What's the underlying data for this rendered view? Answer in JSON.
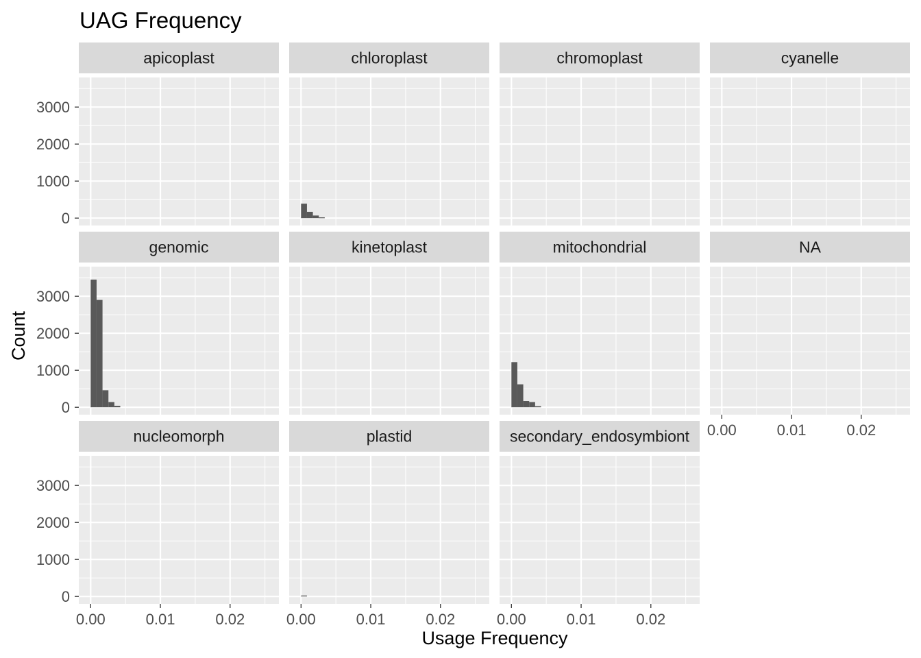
{
  "chart_data": {
    "type": "bar",
    "title": "UAG Frequency",
    "xlabel": "Usage Frequency",
    "ylabel": "Count",
    "xlim": [
      -0.0017,
      0.027
    ],
    "ylim": [
      -200,
      3800
    ],
    "x_ticks": [
      0.0,
      0.01,
      0.02
    ],
    "x_tick_labels": [
      "0.00",
      "0.01",
      "0.02"
    ],
    "y_ticks": [
      0,
      1000,
      2000,
      3000
    ],
    "y_tick_labels": [
      "0",
      "1000",
      "2000",
      "3000"
    ],
    "bin_width": 0.00085,
    "grid": true,
    "layout": {
      "columns": 4,
      "rows": 3
    },
    "colors": {
      "bar": "#595959",
      "panel": "#ebebeb",
      "strip": "#d9d9d9",
      "grid": "#ffffff"
    },
    "panels": [
      {
        "name": "apicoplast",
        "bins": []
      },
      {
        "name": "chloroplast",
        "bins": [
          {
            "x": 0.0,
            "count": 390
          },
          {
            "x": 0.00085,
            "count": 170
          },
          {
            "x": 0.0017,
            "count": 70
          },
          {
            "x": 0.00255,
            "count": 20
          }
        ]
      },
      {
        "name": "chromoplast",
        "bins": []
      },
      {
        "name": "cyanelle",
        "bins": []
      },
      {
        "name": "genomic",
        "bins": [
          {
            "x": 0.0,
            "count": 3450
          },
          {
            "x": 0.00085,
            "count": 2900
          },
          {
            "x": 0.0017,
            "count": 460
          },
          {
            "x": 0.00255,
            "count": 140
          },
          {
            "x": 0.0034,
            "count": 40
          }
        ]
      },
      {
        "name": "kinetoplast",
        "bins": []
      },
      {
        "name": "mitochondrial",
        "bins": [
          {
            "x": 0.0,
            "count": 1220
          },
          {
            "x": 0.00085,
            "count": 620
          },
          {
            "x": 0.0017,
            "count": 170
          },
          {
            "x": 0.00255,
            "count": 140
          },
          {
            "x": 0.0034,
            "count": 30
          }
        ]
      },
      {
        "name": "NA",
        "bins": []
      },
      {
        "name": "nucleomorph",
        "bins": []
      },
      {
        "name": "plastid",
        "bins": [
          {
            "x": 0.0,
            "count": 25
          }
        ]
      },
      {
        "name": "secondary_endosymbiont",
        "bins": []
      }
    ]
  }
}
